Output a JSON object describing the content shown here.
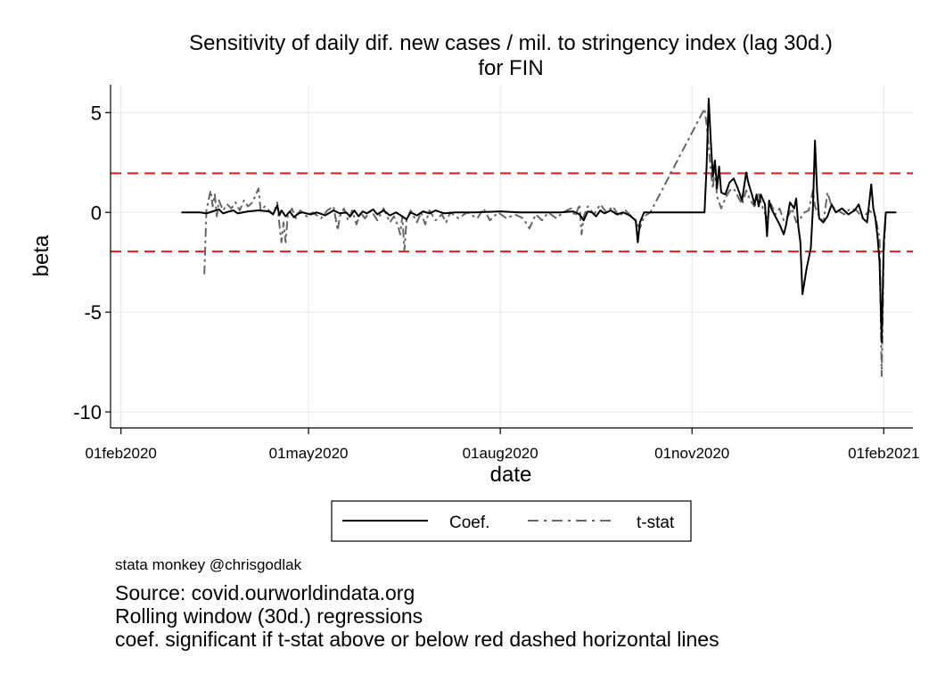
{
  "chart_data": {
    "type": "line",
    "title": "Sensitivity of daily dif. new cases / mil. to stringency index (lag 30d.)",
    "subtitle": "for FIN",
    "xlabel": "date",
    "ylabel": "beta",
    "x_ticks": [
      "01feb2020",
      "01may2020",
      "01aug2020",
      "01nov2020",
      "01feb2021"
    ],
    "y_ticks": [
      5,
      0,
      -5,
      -10
    ],
    "y_tick_labels": [
      "5",
      "0",
      "-5",
      "-10"
    ],
    "xlim": [
      "2020-01-27",
      "2021-02-15"
    ],
    "ylim": [
      -10.8,
      6.4
    ],
    "grid": true,
    "legend_position": "bottom",
    "reference_lines": [
      {
        "y": 1.96,
        "color": "#e8191f",
        "style": "dashed"
      },
      {
        "y": -1.96,
        "color": "#e8191f",
        "style": "dashed"
      }
    ],
    "series": [
      {
        "name": "Coef.",
        "color": "#000000",
        "style": "solid",
        "points": [
          [
            "2020-03-01",
            0.0
          ],
          [
            "2020-03-10",
            0.0
          ],
          [
            "2020-03-13",
            -0.05
          ],
          [
            "2020-03-16",
            0.05
          ],
          [
            "2020-03-19",
            0.15
          ],
          [
            "2020-03-21",
            -0.05
          ],
          [
            "2020-03-24",
            0.05
          ],
          [
            "2020-03-26",
            0.1
          ],
          [
            "2020-03-28",
            -0.05
          ],
          [
            "2020-04-02",
            0.05
          ],
          [
            "2020-04-07",
            0.1
          ],
          [
            "2020-04-12",
            0.05
          ],
          [
            "2020-04-14",
            -0.1
          ],
          [
            "2020-04-16",
            0.35
          ],
          [
            "2020-04-17",
            -0.15
          ],
          [
            "2020-04-18",
            0.1
          ],
          [
            "2020-04-20",
            -0.2
          ],
          [
            "2020-04-22",
            0.05
          ],
          [
            "2020-04-24",
            -0.25
          ],
          [
            "2020-04-26",
            -0.05
          ],
          [
            "2020-04-28",
            0.0
          ],
          [
            "2020-05-02",
            -0.1
          ],
          [
            "2020-05-05",
            0.0
          ],
          [
            "2020-05-09",
            -0.15
          ],
          [
            "2020-05-13",
            0.1
          ],
          [
            "2020-05-16",
            -0.05
          ],
          [
            "2020-05-19",
            0.0
          ],
          [
            "2020-05-21",
            -0.2
          ],
          [
            "2020-05-23",
            0.1
          ],
          [
            "2020-05-25",
            -0.2
          ],
          [
            "2020-05-27",
            0.05
          ],
          [
            "2020-05-29",
            -0.05
          ],
          [
            "2020-06-01",
            0.15
          ],
          [
            "2020-06-03",
            -0.1
          ],
          [
            "2020-06-06",
            0.1
          ],
          [
            "2020-06-09",
            -0.15
          ],
          [
            "2020-06-12",
            0.0
          ],
          [
            "2020-06-15",
            -0.2
          ],
          [
            "2020-06-17",
            -0.35
          ],
          [
            "2020-06-19",
            0.0
          ],
          [
            "2020-06-22",
            -0.15
          ],
          [
            "2020-06-25",
            0.05
          ],
          [
            "2020-06-28",
            -0.05
          ],
          [
            "2020-07-01",
            0.1
          ],
          [
            "2020-07-05",
            -0.05
          ],
          [
            "2020-07-10",
            0.0
          ],
          [
            "2020-07-20",
            0.0
          ],
          [
            "2020-08-01",
            0.05
          ],
          [
            "2020-08-10",
            0.0
          ],
          [
            "2020-08-20",
            0.0
          ],
          [
            "2020-08-30",
            0.0
          ],
          [
            "2020-09-05",
            0.05
          ],
          [
            "2020-09-08",
            -0.1
          ],
          [
            "2020-09-10",
            -0.4
          ],
          [
            "2020-09-12",
            0.05
          ],
          [
            "2020-09-14",
            0.0
          ],
          [
            "2020-09-16",
            -0.2
          ],
          [
            "2020-09-18",
            0.1
          ],
          [
            "2020-09-20",
            -0.05
          ],
          [
            "2020-09-23",
            0.1
          ],
          [
            "2020-09-26",
            -0.1
          ],
          [
            "2020-09-29",
            0.0
          ],
          [
            "2020-10-02",
            -0.15
          ],
          [
            "2020-10-05",
            -0.4
          ],
          [
            "2020-10-06",
            -1.5
          ],
          [
            "2020-10-07",
            -0.5
          ],
          [
            "2020-10-09",
            0.0
          ],
          [
            "2020-10-20",
            0.0
          ],
          [
            "2020-11-07",
            0.0
          ],
          [
            "2020-11-08",
            2.3
          ],
          [
            "2020-11-09",
            5.7
          ],
          [
            "2020-11-10",
            3.6
          ],
          [
            "2020-11-11",
            1.8
          ],
          [
            "2020-11-12",
            2.6
          ],
          [
            "2020-11-13",
            1.2
          ],
          [
            "2020-11-14",
            2.3
          ],
          [
            "2020-11-15",
            1.0
          ],
          [
            "2020-11-17",
            0.9
          ],
          [
            "2020-11-19",
            1.5
          ],
          [
            "2020-11-21",
            1.7
          ],
          [
            "2020-11-23",
            1.2
          ],
          [
            "2020-11-25",
            0.6
          ],
          [
            "2020-11-27",
            2.0
          ],
          [
            "2020-11-28",
            1.5
          ],
          [
            "2020-11-30",
            0.8
          ],
          [
            "2020-12-01",
            0.4
          ],
          [
            "2020-12-02",
            0.9
          ],
          [
            "2020-12-03",
            0.3
          ],
          [
            "2020-12-04",
            0.9
          ],
          [
            "2020-12-06",
            0.4
          ],
          [
            "2020-12-07",
            -1.2
          ],
          [
            "2020-12-08",
            0.6
          ],
          [
            "2020-12-09",
            0.2
          ],
          [
            "2020-12-11",
            -0.2
          ],
          [
            "2020-12-13",
            -0.6
          ],
          [
            "2020-12-15",
            -1.1
          ],
          [
            "2020-12-16",
            -0.7
          ],
          [
            "2020-12-18",
            0.5
          ],
          [
            "2020-12-20",
            0.2
          ],
          [
            "2020-12-21",
            0.7
          ],
          [
            "2020-12-22",
            -0.7
          ],
          [
            "2020-12-23",
            -1.5
          ],
          [
            "2020-12-24",
            -4.1
          ],
          [
            "2020-12-26",
            -2.8
          ],
          [
            "2020-12-28",
            -1.8
          ],
          [
            "2020-12-29",
            0.2
          ],
          [
            "2020-12-30",
            3.6
          ],
          [
            "2020-12-31",
            1.1
          ],
          [
            "2021-01-01",
            -0.3
          ],
          [
            "2021-01-03",
            -0.5
          ],
          [
            "2021-01-05",
            -0.2
          ],
          [
            "2021-01-07",
            0.4
          ],
          [
            "2021-01-09",
            0.0
          ],
          [
            "2021-01-12",
            0.2
          ],
          [
            "2021-01-15",
            -0.1
          ],
          [
            "2021-01-18",
            0.1
          ],
          [
            "2021-01-20",
            0.4
          ],
          [
            "2021-01-22",
            -0.3
          ],
          [
            "2021-01-24",
            -0.5
          ],
          [
            "2021-01-26",
            1.4
          ],
          [
            "2021-01-27",
            0.2
          ],
          [
            "2021-01-28",
            -0.3
          ],
          [
            "2021-01-29",
            -1.2
          ],
          [
            "2021-01-30",
            -2.5
          ],
          [
            "2021-01-31",
            -6.5
          ],
          [
            "2021-02-01",
            -1.5
          ],
          [
            "2021-02-02",
            0.0
          ],
          [
            "2021-02-07",
            0.0
          ]
        ]
      },
      {
        "name": "t-stat",
        "color": "#666666",
        "style": "dash",
        "points": [
          [
            "2020-03-12",
            -3.1
          ],
          [
            "2020-03-13",
            0.1
          ],
          [
            "2020-03-15",
            1.1
          ],
          [
            "2020-03-16",
            0.3
          ],
          [
            "2020-03-17",
            0.9
          ],
          [
            "2020-03-18",
            -0.2
          ],
          [
            "2020-03-19",
            0.6
          ],
          [
            "2020-03-21",
            0.1
          ],
          [
            "2020-03-23",
            0.4
          ],
          [
            "2020-03-25",
            0.2
          ],
          [
            "2020-03-27",
            0.5
          ],
          [
            "2020-03-29",
            0.1
          ],
          [
            "2020-03-31",
            0.6
          ],
          [
            "2020-04-02",
            0.3
          ],
          [
            "2020-04-04",
            0.5
          ],
          [
            "2020-04-07",
            1.2
          ],
          [
            "2020-04-08",
            0.1
          ],
          [
            "2020-04-10",
            0.3
          ],
          [
            "2020-04-14",
            -0.1
          ],
          [
            "2020-04-16",
            0.5
          ],
          [
            "2020-04-17",
            -0.6
          ],
          [
            "2020-04-18",
            -1.5
          ],
          [
            "2020-04-19",
            -0.5
          ],
          [
            "2020-04-20",
            -1.5
          ],
          [
            "2020-04-21",
            -0.2
          ],
          [
            "2020-04-23",
            0.2
          ],
          [
            "2020-04-25",
            -0.3
          ],
          [
            "2020-04-27",
            0.1
          ],
          [
            "2020-04-30",
            -0.2
          ],
          [
            "2020-05-03",
            0.0
          ],
          [
            "2020-05-07",
            -0.3
          ],
          [
            "2020-05-10",
            0.1
          ],
          [
            "2020-05-13",
            0.3
          ],
          [
            "2020-05-15",
            -0.9
          ],
          [
            "2020-05-16",
            -0.2
          ],
          [
            "2020-05-18",
            0.2
          ],
          [
            "2020-05-20",
            -0.4
          ],
          [
            "2020-05-22",
            0.1
          ],
          [
            "2020-05-24",
            -0.6
          ],
          [
            "2020-05-26",
            0.0
          ],
          [
            "2020-05-28",
            -0.3
          ],
          [
            "2020-05-31",
            0.1
          ],
          [
            "2020-06-03",
            -0.4
          ],
          [
            "2020-06-06",
            0.2
          ],
          [
            "2020-06-09",
            -0.5
          ],
          [
            "2020-06-11",
            -0.2
          ],
          [
            "2020-06-13",
            -0.7
          ],
          [
            "2020-06-14",
            -1.1
          ],
          [
            "2020-06-15",
            -0.2
          ],
          [
            "2020-06-16",
            -1.9
          ],
          [
            "2020-06-17",
            -0.4
          ],
          [
            "2020-06-19",
            0.1
          ],
          [
            "2020-06-22",
            -0.5
          ],
          [
            "2020-06-24",
            0.0
          ],
          [
            "2020-06-26",
            -0.6
          ],
          [
            "2020-06-28",
            0.1
          ],
          [
            "2020-07-01",
            -0.4
          ],
          [
            "2020-07-04",
            -0.1
          ],
          [
            "2020-07-06",
            -0.5
          ],
          [
            "2020-07-08",
            0.0
          ],
          [
            "2020-07-12",
            -0.3
          ],
          [
            "2020-07-16",
            0.0
          ],
          [
            "2020-07-21",
            -0.3
          ],
          [
            "2020-07-24",
            0.2
          ],
          [
            "2020-07-27",
            -0.4
          ],
          [
            "2020-07-31",
            0.0
          ],
          [
            "2020-08-04",
            -0.3
          ],
          [
            "2020-08-08",
            -0.1
          ],
          [
            "2020-08-12",
            -0.3
          ],
          [
            "2020-08-15",
            -0.8
          ],
          [
            "2020-08-18",
            -0.1
          ],
          [
            "2020-08-21",
            -0.4
          ],
          [
            "2020-08-24",
            0.0
          ],
          [
            "2020-08-28",
            -0.3
          ],
          [
            "2020-08-31",
            0.0
          ],
          [
            "2020-09-04",
            0.2
          ],
          [
            "2020-09-06",
            -0.2
          ],
          [
            "2020-09-08",
            0.4
          ],
          [
            "2020-09-09",
            -1.1
          ],
          [
            "2020-09-10",
            -0.2
          ],
          [
            "2020-09-12",
            0.3
          ],
          [
            "2020-09-15",
            -0.1
          ],
          [
            "2020-09-18",
            0.4
          ],
          [
            "2020-09-21",
            0.0
          ],
          [
            "2020-09-24",
            0.3
          ],
          [
            "2020-09-27",
            -0.2
          ],
          [
            "2020-09-30",
            0.1
          ],
          [
            "2020-10-04",
            -0.3
          ],
          [
            "2020-10-07",
            -0.8
          ],
          [
            "2020-10-09",
            -0.2
          ],
          [
            "2020-10-12",
            0.0
          ],
          [
            "2020-11-07",
            5.2
          ],
          [
            "2020-11-08",
            4.4
          ],
          [
            "2020-11-09",
            3.3
          ],
          [
            "2020-11-10",
            2.1
          ],
          [
            "2020-11-11",
            1.2
          ],
          [
            "2020-11-12",
            2.3
          ],
          [
            "2020-11-13",
            0.8
          ],
          [
            "2020-11-15",
            0.2
          ],
          [
            "2020-11-17",
            0.7
          ],
          [
            "2020-11-19",
            1.1
          ],
          [
            "2020-11-21",
            1.2
          ],
          [
            "2020-11-23",
            0.8
          ],
          [
            "2020-11-25",
            0.4
          ],
          [
            "2020-11-27",
            1.1
          ],
          [
            "2020-11-29",
            0.6
          ],
          [
            "2020-12-01",
            0.3
          ],
          [
            "2020-12-03",
            0.9
          ],
          [
            "2020-12-05",
            0.2
          ],
          [
            "2020-12-07",
            -0.3
          ],
          [
            "2020-12-09",
            0.4
          ],
          [
            "2020-12-11",
            -0.1
          ],
          [
            "2020-12-13",
            0.2
          ],
          [
            "2020-12-15",
            -0.4
          ],
          [
            "2020-12-17",
            -0.2
          ],
          [
            "2020-12-19",
            0.2
          ],
          [
            "2020-12-21",
            -0.5
          ],
          [
            "2020-12-23",
            -0.3
          ],
          [
            "2020-12-25",
            0.0
          ],
          [
            "2020-12-27",
            0.1
          ],
          [
            "2020-12-29",
            1.1
          ],
          [
            "2020-12-30",
            0.3
          ],
          [
            "2021-01-01",
            -0.2
          ],
          [
            "2021-01-03",
            -0.5
          ],
          [
            "2021-01-05",
            1.0
          ],
          [
            "2021-01-07",
            0.3
          ],
          [
            "2021-01-10",
            0.1
          ],
          [
            "2021-01-13",
            -0.1
          ],
          [
            "2021-01-16",
            0.2
          ],
          [
            "2021-01-19",
            0.1
          ],
          [
            "2021-01-22",
            -0.3
          ],
          [
            "2021-01-25",
            0.1
          ],
          [
            "2021-01-28",
            -0.2
          ],
          [
            "2021-01-30",
            -1.3
          ],
          [
            "2021-01-31",
            -8.2
          ],
          [
            "2021-02-01",
            -2.0
          ],
          [
            "2021-02-02",
            0.0
          ]
        ]
      }
    ]
  },
  "footer": {
    "credit": "stata monkey @chrisgodlak",
    "lines": [
      "Source: covid.ourworldindata.org",
      "Rolling window (30d.) regressions",
      "coef. significant if t-stat above or below red dashed horizontal lines"
    ]
  }
}
